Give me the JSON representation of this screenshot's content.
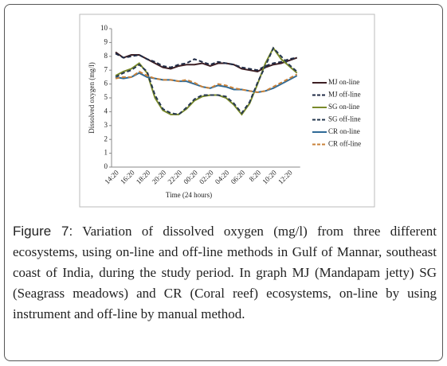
{
  "chart_data": {
    "type": "line",
    "x_label": "Time (24 hours)",
    "y_label": "Dissolved oxygen (mg/l)",
    "categories": [
      "14:20",
      null,
      "16:20",
      null,
      "18:20",
      null,
      "20:20",
      null,
      "22:20",
      null,
      "00:20",
      null,
      "02:20",
      null,
      "04:20",
      null,
      "06:20",
      null,
      "8:20",
      null,
      "10:20",
      null,
      "12:20",
      null
    ],
    "ylim": [
      0,
      10
    ],
    "yticks": [
      0,
      1,
      2,
      3,
      4,
      5,
      6,
      7,
      8,
      9,
      10
    ],
    "series": [
      {
        "name": "MJ on-line",
        "color": "#3d1f24",
        "dashed": false,
        "values": [
          8.3,
          7.9,
          8.1,
          8.1,
          7.8,
          7.5,
          7.2,
          7.1,
          7.3,
          7.4,
          7.4,
          7.5,
          7.3,
          7.5,
          7.5,
          7.4,
          7.1,
          7.0,
          6.9,
          7.2,
          7.4,
          7.5,
          7.7,
          7.9
        ]
      },
      {
        "name": "MJ off-line",
        "color": "#1f2a44",
        "dashed": true,
        "values": [
          8.2,
          7.9,
          8.0,
          8.1,
          7.8,
          7.6,
          7.3,
          7.2,
          7.4,
          7.5,
          7.8,
          7.6,
          7.4,
          7.6,
          7.5,
          7.4,
          7.2,
          7.1,
          7.0,
          7.3,
          7.5,
          7.6,
          7.8,
          7.9
        ]
      },
      {
        "name": "SG on-line",
        "color": "#7a8a2a",
        "dashed": false,
        "values": [
          6.6,
          6.9,
          7.1,
          7.5,
          6.8,
          5.0,
          4.1,
          3.8,
          3.8,
          4.2,
          4.8,
          5.1,
          5.2,
          5.2,
          5.0,
          4.5,
          3.8,
          4.6,
          6.0,
          7.5,
          8.6,
          7.8,
          7.3,
          6.8
        ]
      },
      {
        "name": "SG off-line",
        "color": "#26384f",
        "dashed": true,
        "values": [
          6.5,
          6.8,
          7.0,
          7.4,
          6.9,
          5.2,
          4.2,
          3.9,
          3.8,
          4.3,
          4.9,
          5.2,
          5.2,
          5.2,
          5.1,
          4.6,
          3.9,
          4.7,
          6.1,
          7.3,
          8.6,
          8.0,
          7.4,
          6.9
        ]
      },
      {
        "name": "CR on-line",
        "color": "#2f6a96",
        "dashed": false,
        "values": [
          6.5,
          6.4,
          6.5,
          6.8,
          6.5,
          6.4,
          6.3,
          6.3,
          6.2,
          6.2,
          6.0,
          5.8,
          5.7,
          5.9,
          5.8,
          5.6,
          5.6,
          5.5,
          5.4,
          5.5,
          5.7,
          6.0,
          6.3,
          6.6
        ]
      },
      {
        "name": "CR off-line",
        "color": "#c8823a",
        "dashed": true,
        "values": [
          6.4,
          6.5,
          6.5,
          6.9,
          6.6,
          6.4,
          6.3,
          6.3,
          6.2,
          6.3,
          6.1,
          5.8,
          5.7,
          6.0,
          5.9,
          5.7,
          5.6,
          5.5,
          5.4,
          5.5,
          5.8,
          6.1,
          6.4,
          6.7
        ]
      }
    ],
    "caption_label": "Figure 7:",
    "caption_text": "Variation of dissolved oxygen (mg/l) from three different ecosystems, using on-line and off-line methods in Gulf of Mannar, southeast coast of India, during the study period. In graph MJ (Mandapam jetty) SG (Seagrass meadows) and CR (Coral reef) ecosystems, on-line by using instrument and off-line by manual method."
  }
}
